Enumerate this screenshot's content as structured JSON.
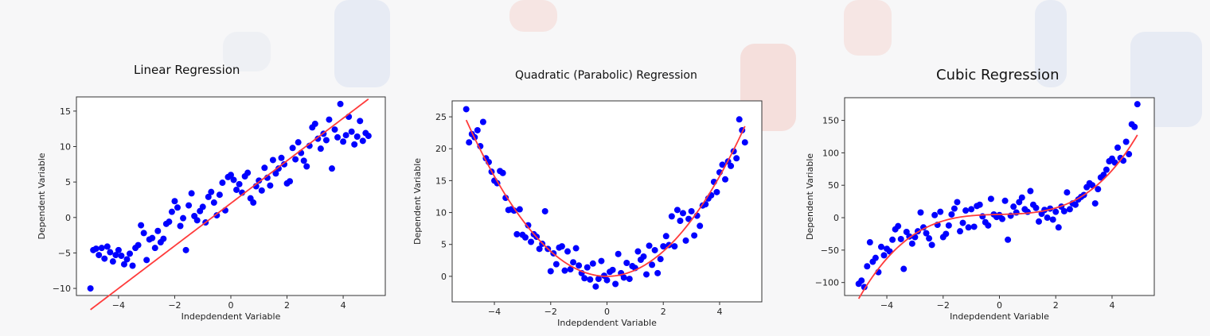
{
  "chart_data": [
    {
      "type": "scatter",
      "title": "Linear Regression",
      "xlabel": "Indepdendent Variable",
      "ylabel": "Dependent Variable",
      "xlim": [
        -5.5,
        5.5
      ],
      "ylim": [
        -11,
        17
      ],
      "xticks": [
        -4,
        -2,
        0,
        2,
        4
      ],
      "yticks": [
        -10,
        -5,
        0,
        5,
        10,
        15
      ],
      "grid": false,
      "marker_color": "#0000ff",
      "fit_color": "#ff3b3b",
      "fit": {
        "model": "linear",
        "coefficients": [
          2.0,
          3.0
        ]
      },
      "points": {
        "x": [
          -5.0,
          -4.9,
          -4.8,
          -4.7,
          -4.6,
          -4.5,
          -4.4,
          -4.3,
          -4.2,
          -4.1,
          -4.0,
          -3.9,
          -3.8,
          -3.7,
          -3.6,
          -3.5,
          -3.4,
          -3.3,
          -3.2,
          -3.1,
          -3.0,
          -2.9,
          -2.8,
          -2.7,
          -2.6,
          -2.5,
          -2.4,
          -2.3,
          -2.2,
          -2.1,
          -2.0,
          -1.9,
          -1.8,
          -1.7,
          -1.6,
          -1.5,
          -1.4,
          -1.3,
          -1.2,
          -1.1,
          -1.0,
          -0.9,
          -0.8,
          -0.7,
          -0.6,
          -0.5,
          -0.4,
          -0.3,
          -0.2,
          -0.1,
          0.0,
          0.1,
          0.2,
          0.3,
          0.4,
          0.5,
          0.6,
          0.7,
          0.8,
          0.9,
          1.0,
          1.1,
          1.2,
          1.3,
          1.4,
          1.5,
          1.6,
          1.7,
          1.8,
          1.9,
          2.0,
          2.1,
          2.2,
          2.3,
          2.4,
          2.5,
          2.6,
          2.7,
          2.8,
          2.9,
          3.0,
          3.1,
          3.2,
          3.3,
          3.4,
          3.5,
          3.6,
          3.7,
          3.8,
          3.9,
          4.0,
          4.1,
          4.2,
          4.3,
          4.4,
          4.5,
          4.6,
          4.7,
          4.8,
          4.9
        ],
        "y": [
          -10.0,
          -4.6,
          -4.4,
          -5.3,
          -4.3,
          -5.8,
          -4.1,
          -4.9,
          -6.2,
          -5.3,
          -4.6,
          -5.4,
          -6.6,
          -5.9,
          -5.1,
          -6.8,
          -4.3,
          -3.9,
          -1.1,
          -2.2,
          -6.0,
          -3.1,
          -2.9,
          -4.3,
          -1.9,
          -3.5,
          -3.0,
          -0.9,
          -0.6,
          0.8,
          2.3,
          1.4,
          -1.2,
          -0.1,
          -4.6,
          1.7,
          3.4,
          0.2,
          -0.4,
          0.9,
          1.5,
          -0.7,
          2.9,
          3.6,
          2.1,
          0.3,
          3.2,
          4.9,
          1.0,
          5.7,
          6.0,
          5.3,
          3.9,
          4.7,
          3.5,
          5.8,
          6.3,
          2.7,
          2.1,
          4.4,
          5.2,
          3.8,
          7.0,
          5.6,
          4.5,
          8.1,
          6.2,
          6.9,
          8.4,
          7.5,
          4.8,
          5.1,
          9.8,
          8.2,
          10.6,
          9.1,
          8.0,
          7.2,
          10.1,
          12.7,
          13.2,
          11.1,
          9.7,
          11.8,
          10.9,
          13.8,
          6.9,
          12.4,
          11.3,
          16.0,
          10.7,
          11.6,
          14.2,
          12.1,
          10.3,
          11.4,
          13.6,
          10.8,
          11.9,
          11.5
        ]
      }
    },
    {
      "type": "scatter",
      "title": "Quadratic (Parabolic) Regression",
      "xlabel": "Indepdendent Variable",
      "ylabel": "Dependent Variable",
      "xlim": [
        -5.5,
        5.5
      ],
      "ylim": [
        -4,
        27.5
      ],
      "xticks": [
        -4,
        -2,
        0,
        2,
        4
      ],
      "yticks": [
        0,
        5,
        10,
        15,
        20,
        25
      ],
      "grid": false,
      "marker_color": "#0000ff",
      "fit_color": "#ff3b3b",
      "fit": {
        "model": "quadratic",
        "coefficients": [
          0.0,
          0.0,
          0.98
        ]
      },
      "points": {
        "x": [
          -5.0,
          -4.9,
          -4.8,
          -4.7,
          -4.6,
          -4.5,
          -4.4,
          -4.3,
          -4.2,
          -4.1,
          -4.0,
          -3.9,
          -3.8,
          -3.7,
          -3.6,
          -3.5,
          -3.4,
          -3.3,
          -3.2,
          -3.1,
          -3.0,
          -2.9,
          -2.8,
          -2.7,
          -2.6,
          -2.5,
          -2.4,
          -2.3,
          -2.2,
          -2.1,
          -2.0,
          -1.9,
          -1.8,
          -1.7,
          -1.6,
          -1.5,
          -1.4,
          -1.3,
          -1.2,
          -1.1,
          -1.0,
          -0.9,
          -0.8,
          -0.7,
          -0.6,
          -0.5,
          -0.4,
          -0.3,
          -0.2,
          -0.1,
          0.0,
          0.1,
          0.2,
          0.3,
          0.4,
          0.5,
          0.6,
          0.7,
          0.8,
          0.9,
          1.0,
          1.1,
          1.2,
          1.3,
          1.4,
          1.5,
          1.6,
          1.7,
          1.8,
          1.9,
          2.0,
          2.1,
          2.2,
          2.3,
          2.4,
          2.5,
          2.6,
          2.7,
          2.8,
          2.9,
          3.0,
          3.1,
          3.2,
          3.3,
          3.4,
          3.5,
          3.6,
          3.7,
          3.8,
          3.9,
          4.0,
          4.1,
          4.2,
          4.3,
          4.4,
          4.5,
          4.6,
          4.7,
          4.8,
          4.9
        ],
        "y": [
          26.2,
          21.0,
          22.3,
          21.8,
          22.9,
          20.4,
          24.2,
          18.5,
          17.9,
          16.4,
          15.0,
          14.6,
          16.5,
          16.2,
          12.3,
          10.4,
          10.5,
          10.3,
          6.6,
          10.5,
          6.5,
          6.1,
          8.0,
          5.4,
          6.6,
          6.2,
          4.3,
          5.1,
          10.2,
          4.3,
          0.8,
          3.6,
          1.9,
          4.5,
          4.7,
          0.9,
          3.9,
          1.1,
          2.2,
          4.4,
          1.7,
          0.5,
          -0.3,
          1.4,
          -0.5,
          2.0,
          -1.6,
          -0.4,
          2.4,
          0.1,
          -0.6,
          0.7,
          1.0,
          -1.2,
          3.5,
          0.5,
          -0.2,
          2.1,
          -0.4,
          1.6,
          1.3,
          3.9,
          2.6,
          3.1,
          0.3,
          4.8,
          1.8,
          4.1,
          0.5,
          2.7,
          4.7,
          6.3,
          4.9,
          9.4,
          4.7,
          10.4,
          8.7,
          9.9,
          5.6,
          9.0,
          10.2,
          6.4,
          9.5,
          7.9,
          11.1,
          11.3,
          12.2,
          12.7,
          14.8,
          13.2,
          16.3,
          17.5,
          15.2,
          18.0,
          17.3,
          19.6,
          18.5,
          24.6,
          22.9,
          21.0
        ]
      }
    },
    {
      "type": "scatter",
      "title": "Cubic Regression",
      "xlabel": "Indepdendent Variable",
      "ylabel": "Dependent Variable",
      "xlim": [
        -5.5,
        5.5
      ],
      "ylim": [
        -120,
        185
      ],
      "xticks": [
        -4,
        -2,
        0,
        2,
        4
      ],
      "yticks": [
        -100,
        -50,
        0,
        50,
        100,
        150
      ],
      "grid": false,
      "marker_color": "#0000ff",
      "fit_color": "#ff3b3b",
      "fit": {
        "model": "cubic",
        "coefficients": [
          5.0,
          1.0,
          0.0,
          1.0
        ]
      },
      "points": {
        "x": [
          -5.0,
          -4.9,
          -4.8,
          -4.7,
          -4.6,
          -4.5,
          -4.4,
          -4.3,
          -4.2,
          -4.1,
          -4.0,
          -3.9,
          -3.8,
          -3.7,
          -3.6,
          -3.5,
          -3.4,
          -3.3,
          -3.2,
          -3.1,
          -3.0,
          -2.9,
          -2.8,
          -2.7,
          -2.6,
          -2.5,
          -2.4,
          -2.3,
          -2.2,
          -2.1,
          -2.0,
          -1.9,
          -1.8,
          -1.7,
          -1.6,
          -1.5,
          -1.4,
          -1.3,
          -1.2,
          -1.1,
          -1.0,
          -0.9,
          -0.8,
          -0.7,
          -0.6,
          -0.5,
          -0.4,
          -0.3,
          -0.2,
          -0.1,
          0.0,
          0.1,
          0.2,
          0.3,
          0.4,
          0.5,
          0.6,
          0.7,
          0.8,
          0.9,
          1.0,
          1.1,
          1.2,
          1.3,
          1.4,
          1.5,
          1.6,
          1.7,
          1.8,
          1.9,
          2.0,
          2.1,
          2.2,
          2.3,
          2.4,
          2.5,
          2.6,
          2.7,
          2.8,
          2.9,
          3.0,
          3.1,
          3.2,
          3.3,
          3.4,
          3.5,
          3.6,
          3.7,
          3.8,
          3.9,
          4.0,
          4.1,
          4.2,
          4.3,
          4.4,
          4.5,
          4.6,
          4.7,
          4.8,
          4.9
        ],
        "y": [
          -102.0,
          -97.0,
          -107.0,
          -75.0,
          -38.0,
          -68.0,
          -62.0,
          -84.0,
          -45.0,
          -58.0,
          -48.0,
          -52.0,
          -34.0,
          -18.0,
          -13.0,
          -33.0,
          -79.0,
          -22.0,
          -29.0,
          -40.0,
          -30.0,
          -21.0,
          8.0,
          -15.0,
          -24.0,
          -32.0,
          -42.0,
          4.0,
          -11.0,
          9.0,
          -30.0,
          -25.0,
          -12.0,
          5.0,
          14.0,
          24.0,
          -21.0,
          -8.0,
          11.0,
          -15.0,
          13.0,
          -14.0,
          18.0,
          20.0,
          2.0,
          -7.0,
          -12.0,
          29.0,
          5.0,
          1.0,
          4.0,
          -2.0,
          26.0,
          -34.0,
          3.0,
          17.0,
          8.0,
          24.0,
          31.0,
          13.0,
          9.0,
          41.0,
          20.0,
          15.0,
          -6.0,
          6.0,
          12.0,
          0.0,
          14.0,
          -3.0,
          9.0,
          -15.0,
          17.0,
          10.0,
          39.0,
          13.0,
          22.0,
          20.0,
          28.0,
          32.0,
          35.0,
          47.0,
          53.0,
          50.0,
          22.0,
          44.0,
          62.0,
          66.0,
          74.0,
          87.0,
          91.0,
          85.0,
          108.0,
          92.0,
          88.0,
          117.0,
          98.0,
          144.0,
          140.0,
          175.0
        ]
      }
    }
  ]
}
